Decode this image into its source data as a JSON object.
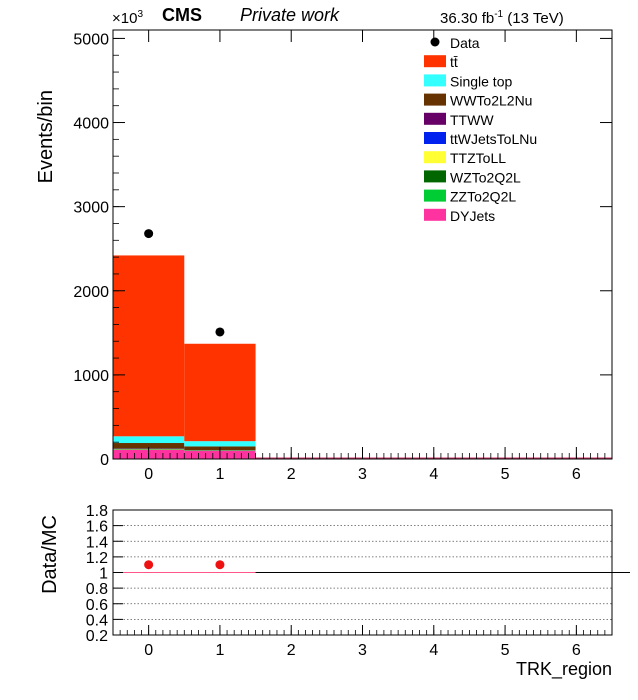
{
  "header": {
    "experiment": "CMS",
    "label": "Private work",
    "lumi_value": "36.30 fb",
    "lumi_exp": "-1",
    "energy": " (13 TeV)"
  },
  "chart_data": [
    {
      "type": "bar",
      "stacked": true,
      "ylabel": "Events/bin",
      "y_multiplier_base": "×10",
      "y_multiplier_exp": "3",
      "x_ticks": [
        "0",
        "1",
        "2",
        "3",
        "4",
        "5",
        "6"
      ],
      "y_ticks": [
        "0",
        "1000",
        "2000",
        "3000",
        "4000",
        "5000"
      ],
      "xlim": [
        -0.5,
        6.5
      ],
      "ylim": [
        0,
        5100
      ],
      "bins": [
        0,
        1,
        2,
        3,
        4,
        5,
        6
      ],
      "series": [
        {
          "name": "DYJets",
          "color": "#ff33a0",
          "values": [
            110,
            95,
            0,
            0,
            0,
            0,
            0
          ]
        },
        {
          "name": "ZZTo2Q2L",
          "color": "#00cc33",
          "values": [
            3,
            2,
            0,
            0,
            0,
            0,
            0
          ]
        },
        {
          "name": "WZTo2Q2L",
          "color": "#006600",
          "values": [
            4,
            3,
            0,
            0,
            0,
            0,
            0
          ]
        },
        {
          "name": "TTZToLL",
          "color": "#ffff33",
          "values": [
            3,
            2,
            0,
            0,
            0,
            0,
            0
          ]
        },
        {
          "name": "ttWJetsToLNu",
          "color": "#0022ee",
          "values": [
            3,
            2,
            0,
            0,
            0,
            0,
            0
          ]
        },
        {
          "name": "TTWW",
          "color": "#660066",
          "values": [
            1,
            1,
            0,
            0,
            0,
            0,
            0
          ]
        },
        {
          "name": "WWTo2L2Nu",
          "color": "#663300",
          "values": [
            66,
            45,
            0,
            0,
            0,
            0,
            0
          ]
        },
        {
          "name": "Single top",
          "color": "#33ffff",
          "values": [
            80,
            62,
            0,
            0,
            0,
            0,
            0
          ]
        },
        {
          "name": "tt̄",
          "color": "#ff3300",
          "values": [
            2150,
            1158,
            0,
            0,
            0,
            0,
            0
          ]
        }
      ],
      "data": {
        "name": "Data",
        "color": "#000000",
        "values": [
          2680,
          1510,
          0,
          0,
          0,
          0,
          0
        ]
      },
      "legend_order": [
        "Data",
        "tt̄",
        "Single top",
        "WWTo2L2Nu",
        "TTWW",
        "ttWJetsToLNu",
        "TTZToLL",
        "WZTo2Q2L",
        "ZZTo2Q2L",
        "DYJets"
      ],
      "legend_position": "top-right"
    },
    {
      "type": "scatter",
      "ylabel": "Data/MC",
      "xlabel": "TRK_region",
      "x_ticks": [
        "0",
        "1",
        "2",
        "3",
        "4",
        "5",
        "6"
      ],
      "y_ticks": [
        "0.2",
        "0.4",
        "0.6",
        "0.8",
        "1",
        "1.2",
        "1.4",
        "1.6",
        "1.8"
      ],
      "xlim": [
        -0.5,
        6.5
      ],
      "ylim": [
        0.2,
        1.8
      ],
      "grid": true,
      "reference_line": 1,
      "x": [
        0,
        1
      ],
      "y": [
        1.1,
        1.1
      ],
      "color": "#ee1111"
    }
  ]
}
